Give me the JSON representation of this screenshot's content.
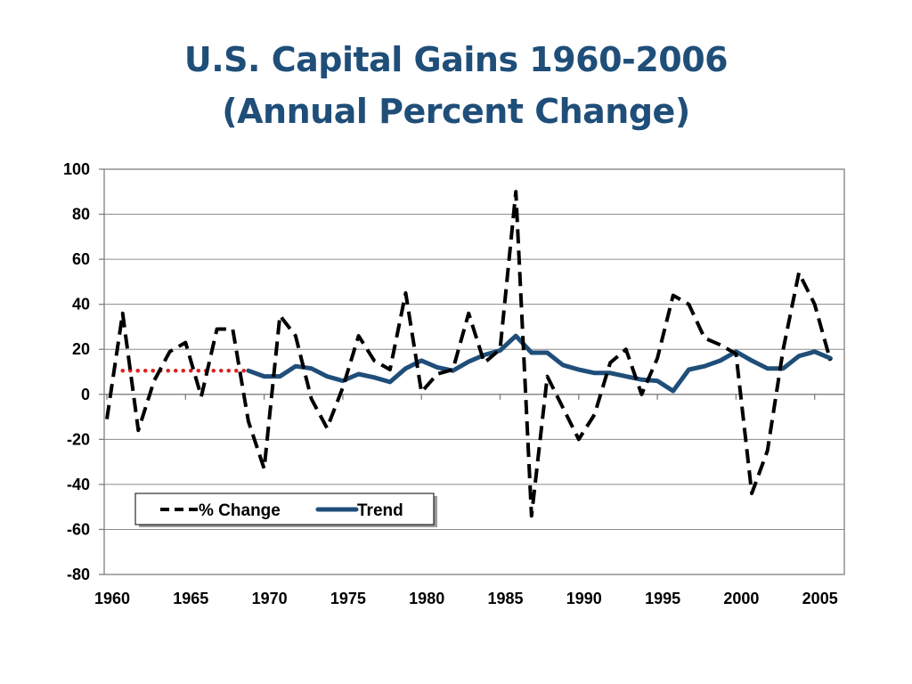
{
  "title": {
    "line1": "U.S. Capital Gains 1960-2006",
    "line2": "(Annual Percent Change)"
  },
  "chart_data": {
    "type": "line",
    "title": "U.S. Capital Gains 1960-2006 (Annual Percent Change)",
    "xlabel": "",
    "ylabel": "",
    "xlim": [
      1960,
      2006
    ],
    "ylim": [
      -80,
      100
    ],
    "y_ticks": [
      100,
      80,
      60,
      40,
      20,
      0,
      -20,
      -40,
      -60,
      -80
    ],
    "x_ticks": [
      1960,
      1965,
      1970,
      1975,
      1980,
      1985,
      1990,
      1995,
      2000,
      2005
    ],
    "grid": "horizontal",
    "legend": "bottom-left",
    "series": [
      {
        "name": "% Change",
        "style": "dashed",
        "color": "#000000",
        "x": [
          1960,
          1961,
          1962,
          1963,
          1964,
          1965,
          1966,
          1967,
          1968,
          1969,
          1970,
          1971,
          1972,
          1973,
          1974,
          1975,
          1976,
          1977,
          1978,
          1979,
          1980,
          1981,
          1982,
          1983,
          1984,
          1985,
          1986,
          1987,
          1988,
          1989,
          1990,
          1991,
          1992,
          1993,
          1994,
          1995,
          1996,
          1997,
          1998,
          1999,
          2000,
          2001,
          2002,
          2003,
          2004,
          2005,
          2006
        ],
        "values": [
          -11,
          36,
          -16,
          6,
          19,
          23,
          -1,
          29,
          29,
          -12,
          -33,
          35,
          26,
          -2,
          -15,
          3,
          26,
          15,
          11,
          45,
          1,
          9,
          11,
          36,
          14,
          20,
          90,
          -54,
          8,
          -6,
          -20,
          -9,
          14,
          20,
          0,
          16,
          44,
          40,
          25,
          22,
          18,
          -44,
          -25,
          20,
          54,
          40,
          15
        ]
      },
      {
        "name": "Trend",
        "style": "solid",
        "color": "#1f4e79",
        "x": [
          1969,
          1970,
          1971,
          1972,
          1973,
          1974,
          1975,
          1976,
          1977,
          1978,
          1979,
          1980,
          1981,
          1982,
          1983,
          1984,
          1985,
          1986,
          1987,
          1988,
          1989,
          1990,
          1991,
          1992,
          1993,
          1994,
          1995,
          1996,
          1997,
          1998,
          1999,
          2000,
          2001,
          2002,
          2003,
          2004,
          2005,
          2006
        ],
        "values": [
          10.5,
          8,
          8,
          12.5,
          11.5,
          8,
          6,
          9,
          7.5,
          5.5,
          11.5,
          15,
          12,
          10.5,
          14.5,
          17.5,
          19.5,
          26,
          18.5,
          18.5,
          13,
          11,
          9.5,
          9.5,
          8,
          6.5,
          6,
          1.5,
          11,
          12.5,
          15,
          19,
          15,
          11.5,
          11.5,
          17,
          19,
          16
        ]
      },
      {
        "name": "",
        "style": "dotted",
        "color": "#e02020",
        "x": [
          1961,
          1969
        ],
        "values": [
          10.5,
          10.5
        ]
      }
    ]
  }
}
